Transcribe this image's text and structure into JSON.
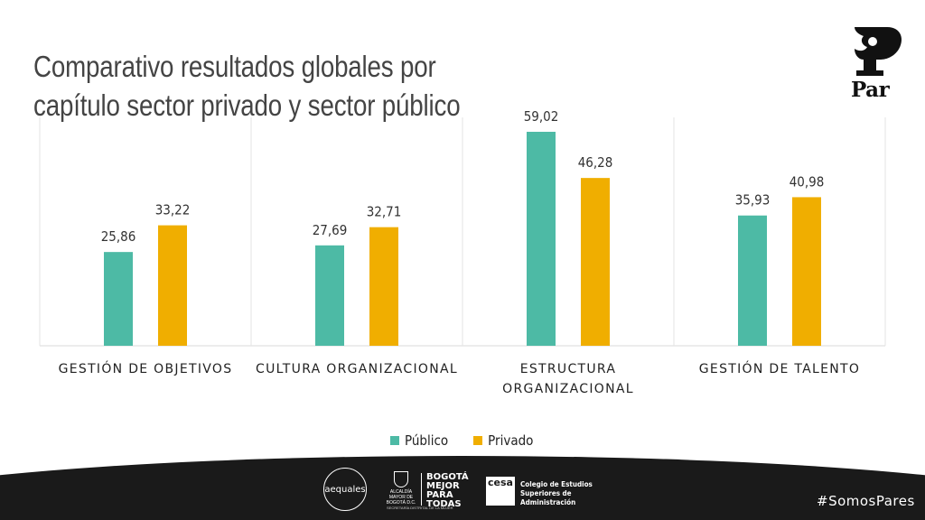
{
  "header": {
    "title_line1": "Comparativo resultados globales por",
    "title_line2": "capítulo sector privado y sector público"
  },
  "logo": {
    "text": "Par",
    "icon": "par-logo-icon"
  },
  "chart_data": {
    "type": "bar",
    "categories": [
      [
        "GESTIÓN DE OBJETIVOS"
      ],
      [
        "CULTURA ORGANIZACIONAL"
      ],
      [
        "ESTRUCTURA",
        "ORGANIZACIONAL"
      ],
      [
        "GESTIÓN DE TALENTO"
      ]
    ],
    "series": [
      {
        "name": "Público",
        "color": "#4dbaa5",
        "values": [
          25.86,
          27.69,
          59.02,
          35.93
        ],
        "labels": [
          "25,86",
          "27,69",
          "59,02",
          "35,93"
        ]
      },
      {
        "name": "Privado",
        "color": "#f0ae00",
        "values": [
          33.22,
          32.71,
          46.28,
          40.98
        ],
        "labels": [
          "33,22",
          "32,71",
          "46,28",
          "40,98"
        ]
      }
    ],
    "ylim": [
      0,
      63
    ],
    "legend_position": "bottom",
    "grid": false
  },
  "footer": {
    "aequales": "aequales",
    "alcaldia": "ALCALDÍA MAYOR DE BOGOTÁ D.C.",
    "bogota": "BOGOTÁ MEJOR PARA TODAS",
    "secretaria": "SECRETARÍA DISTRITAL DE LA MUJER",
    "cesa_mark": "cesa",
    "cesa_line1": "Colegio de Estudios",
    "cesa_line2": "Superiores de Administración",
    "hashtag": "#SomosPares"
  }
}
